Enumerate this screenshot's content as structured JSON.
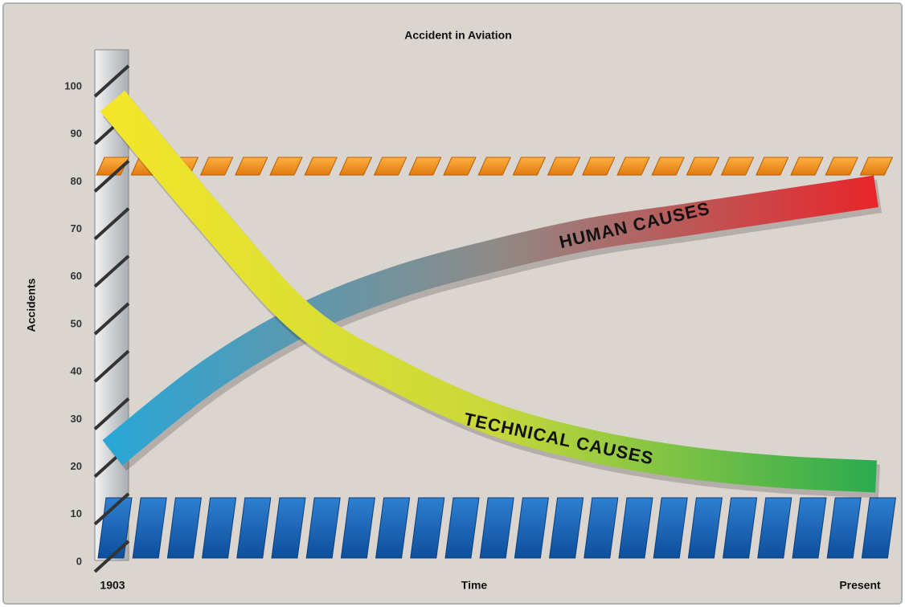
{
  "chart_data": {
    "type": "line",
    "title": "Accident in Aviation",
    "y_label": "Accidents",
    "x_label": "Time",
    "categories": [
      "1903",
      null,
      null,
      null,
      null,
      null,
      null,
      null,
      "Present"
    ],
    "series": [
      {
        "name": "HUMAN CAUSES",
        "color": "#e8262a",
        "gradient": [
          "#2aa6d6",
          "#8f8a86",
          "#e8262a"
        ],
        "values": [
          23,
          39,
          51,
          59,
          64.5,
          69,
          72,
          75,
          78
        ]
      },
      {
        "name": "TECHNICAL CAUSES",
        "color": "#2bab4f",
        "gradient": [
          "#f3e62a",
          "#c8d83a",
          "#2bab4f"
        ],
        "values": [
          97,
          73,
          51,
          39,
          30,
          24.5,
          21,
          19,
          18
        ]
      }
    ],
    "ylim": [
      0,
      100
    ],
    "yticks": [
      0,
      10,
      20,
      30,
      40,
      50,
      60,
      70,
      80,
      90,
      100
    ]
  }
}
